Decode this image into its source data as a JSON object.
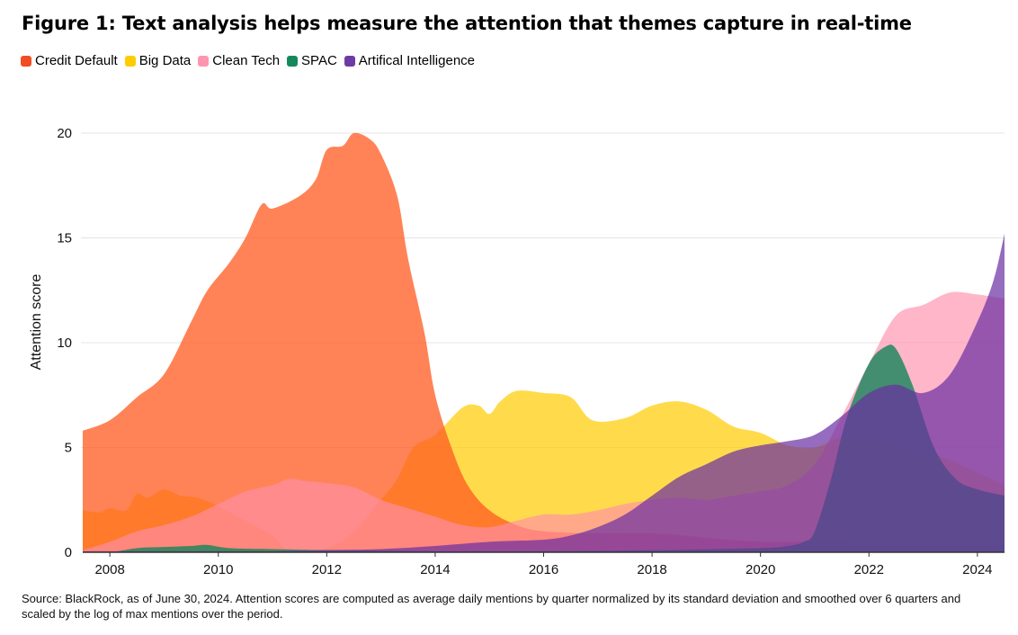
{
  "chart_data": {
    "type": "area",
    "title": "Figure 1: Text analysis helps measure the attention that themes capture in real-time",
    "ylabel": "Attention score",
    "xlabel": "",
    "xlim": [
      2007.5,
      2024.5
    ],
    "ylim": [
      0,
      20
    ],
    "grid": true,
    "legend_position": "top-left",
    "x_ticks": [
      2008,
      2010,
      2012,
      2014,
      2016,
      2018,
      2020,
      2022,
      2024
    ],
    "y_ticks": [
      0,
      5,
      10,
      15,
      20
    ],
    "series": [
      {
        "name": "Big Data",
        "color": "#FFCC00",
        "opacity": 0.7,
        "points": [
          [
            2007.5,
            2.0
          ],
          [
            2007.8,
            1.9
          ],
          [
            2008.0,
            2.1
          ],
          [
            2008.3,
            2.0
          ],
          [
            2008.5,
            2.8
          ],
          [
            2008.7,
            2.6
          ],
          [
            2009.0,
            3.0
          ],
          [
            2009.3,
            2.7
          ],
          [
            2009.6,
            2.6
          ],
          [
            2010.0,
            2.2
          ],
          [
            2010.5,
            1.5
          ],
          [
            2011.0,
            0.8
          ],
          [
            2011.3,
            0.1
          ],
          [
            2012.0,
            0.2
          ],
          [
            2012.5,
            1.0
          ],
          [
            2013.0,
            2.5
          ],
          [
            2013.3,
            3.5
          ],
          [
            2013.6,
            5.0
          ],
          [
            2014.0,
            5.6
          ],
          [
            2014.5,
            6.9
          ],
          [
            2014.8,
            7.0
          ],
          [
            2015.0,
            6.6
          ],
          [
            2015.2,
            7.2
          ],
          [
            2015.5,
            7.7
          ],
          [
            2016.0,
            7.6
          ],
          [
            2016.5,
            7.4
          ],
          [
            2016.9,
            6.3
          ],
          [
            2017.5,
            6.4
          ],
          [
            2018.0,
            7.0
          ],
          [
            2018.5,
            7.2
          ],
          [
            2019.0,
            6.8
          ],
          [
            2019.5,
            6.0
          ],
          [
            2020.0,
            5.7
          ],
          [
            2020.5,
            5.1
          ],
          [
            2021.0,
            5.0
          ],
          [
            2021.5,
            5.5
          ],
          [
            2022.0,
            5.5
          ],
          [
            2022.5,
            5.2
          ],
          [
            2023.0,
            4.8
          ],
          [
            2023.5,
            4.4
          ],
          [
            2024.0,
            3.8
          ],
          [
            2024.5,
            3.2
          ]
        ]
      },
      {
        "name": "Credit Default",
        "color": "#FF5A1F",
        "opacity": 0.75,
        "points": [
          [
            2007.5,
            5.8
          ],
          [
            2008.0,
            6.3
          ],
          [
            2008.5,
            7.4
          ],
          [
            2009.0,
            8.5
          ],
          [
            2009.5,
            11.0
          ],
          [
            2009.8,
            12.5
          ],
          [
            2010.2,
            13.8
          ],
          [
            2010.5,
            15.0
          ],
          [
            2010.8,
            16.6
          ],
          [
            2011.0,
            16.4
          ],
          [
            2011.5,
            17.0
          ],
          [
            2011.8,
            17.8
          ],
          [
            2012.0,
            19.2
          ],
          [
            2012.3,
            19.4
          ],
          [
            2012.5,
            20.0
          ],
          [
            2012.8,
            19.7
          ],
          [
            2013.0,
            19.0
          ],
          [
            2013.3,
            17.0
          ],
          [
            2013.5,
            14.0
          ],
          [
            2013.8,
            10.5
          ],
          [
            2014.0,
            7.5
          ],
          [
            2014.3,
            5.0
          ],
          [
            2014.6,
            3.2
          ],
          [
            2015.0,
            2.0
          ],
          [
            2015.5,
            1.3
          ],
          [
            2016.0,
            1.0
          ],
          [
            2017.0,
            0.9
          ],
          [
            2018.0,
            0.9
          ],
          [
            2019.0,
            0.7
          ],
          [
            2020.0,
            0.5
          ],
          [
            2021.0,
            0.5
          ],
          [
            2022.0,
            0.4
          ],
          [
            2023.0,
            0.4
          ],
          [
            2024.0,
            0.4
          ],
          [
            2024.5,
            0.4
          ]
        ]
      },
      {
        "name": "Clean Tech",
        "color": "#FF8FAB",
        "opacity": 0.65,
        "points": [
          [
            2007.5,
            0.1
          ],
          [
            2008.0,
            0.5
          ],
          [
            2008.5,
            1.0
          ],
          [
            2009.0,
            1.3
          ],
          [
            2009.5,
            1.7
          ],
          [
            2010.0,
            2.3
          ],
          [
            2010.5,
            2.9
          ],
          [
            2011.0,
            3.2
          ],
          [
            2011.3,
            3.5
          ],
          [
            2011.6,
            3.4
          ],
          [
            2012.0,
            3.3
          ],
          [
            2012.5,
            3.1
          ],
          [
            2013.0,
            2.5
          ],
          [
            2013.5,
            2.1
          ],
          [
            2014.0,
            1.7
          ],
          [
            2014.5,
            1.3
          ],
          [
            2015.0,
            1.2
          ],
          [
            2015.5,
            1.5
          ],
          [
            2016.0,
            1.8
          ],
          [
            2016.5,
            1.8
          ],
          [
            2017.0,
            2.0
          ],
          [
            2017.5,
            2.3
          ],
          [
            2018.0,
            2.5
          ],
          [
            2018.5,
            2.6
          ],
          [
            2019.0,
            2.5
          ],
          [
            2019.5,
            2.7
          ],
          [
            2020.0,
            2.9
          ],
          [
            2020.5,
            3.2
          ],
          [
            2021.0,
            4.2
          ],
          [
            2021.5,
            6.5
          ],
          [
            2022.0,
            9.0
          ],
          [
            2022.5,
            11.3
          ],
          [
            2023.0,
            11.8
          ],
          [
            2023.5,
            12.4
          ],
          [
            2024.0,
            12.3
          ],
          [
            2024.5,
            12.1
          ]
        ]
      },
      {
        "name": "SPAC",
        "color": "#14855A",
        "opacity": 0.8,
        "points": [
          [
            2007.5,
            0.0
          ],
          [
            2008.0,
            0.0
          ],
          [
            2008.5,
            0.2
          ],
          [
            2009.0,
            0.25
          ],
          [
            2009.5,
            0.3
          ],
          [
            2009.8,
            0.35
          ],
          [
            2010.2,
            0.2
          ],
          [
            2011.0,
            0.15
          ],
          [
            2012.0,
            0.1
          ],
          [
            2014.0,
            0.05
          ],
          [
            2016.0,
            0.05
          ],
          [
            2018.0,
            0.1
          ],
          [
            2020.0,
            0.2
          ],
          [
            2020.5,
            0.3
          ],
          [
            2020.8,
            0.5
          ],
          [
            2021.0,
            1.0
          ],
          [
            2021.3,
            3.5
          ],
          [
            2021.6,
            6.5
          ],
          [
            2022.0,
            9.0
          ],
          [
            2022.3,
            9.8
          ],
          [
            2022.5,
            9.7
          ],
          [
            2022.8,
            8.0
          ],
          [
            2023.2,
            5.0
          ],
          [
            2023.6,
            3.5
          ],
          [
            2024.0,
            3.0
          ],
          [
            2024.5,
            2.7
          ]
        ]
      },
      {
        "name": "Artifical Intelligence",
        "color": "#6A2EA3",
        "opacity": 0.7,
        "points": [
          [
            2007.5,
            0.05
          ],
          [
            2009.0,
            0.05
          ],
          [
            2010.0,
            0.05
          ],
          [
            2011.0,
            0.05
          ],
          [
            2012.0,
            0.1
          ],
          [
            2013.0,
            0.15
          ],
          [
            2014.0,
            0.3
          ],
          [
            2015.0,
            0.5
          ],
          [
            2016.0,
            0.6
          ],
          [
            2016.5,
            0.8
          ],
          [
            2017.0,
            1.2
          ],
          [
            2017.5,
            1.8
          ],
          [
            2018.0,
            2.7
          ],
          [
            2018.5,
            3.6
          ],
          [
            2019.0,
            4.2
          ],
          [
            2019.5,
            4.8
          ],
          [
            2020.0,
            5.1
          ],
          [
            2020.5,
            5.3
          ],
          [
            2021.0,
            5.6
          ],
          [
            2021.5,
            6.5
          ],
          [
            2022.0,
            7.6
          ],
          [
            2022.5,
            8.0
          ],
          [
            2023.0,
            7.6
          ],
          [
            2023.5,
            8.5
          ],
          [
            2024.0,
            11.0
          ],
          [
            2024.3,
            13.0
          ],
          [
            2024.5,
            15.2
          ]
        ]
      }
    ]
  },
  "source_note": "Source: BlackRock, as of June 30, 2024. Attention scores are computed as average daily mentions by quarter normalized by its standard deviation and smoothed over 6 quarters and scaled by the log of max mentions over the period.",
  "colors": {
    "grid": "#e4e4e4",
    "baseline": "#333333"
  }
}
